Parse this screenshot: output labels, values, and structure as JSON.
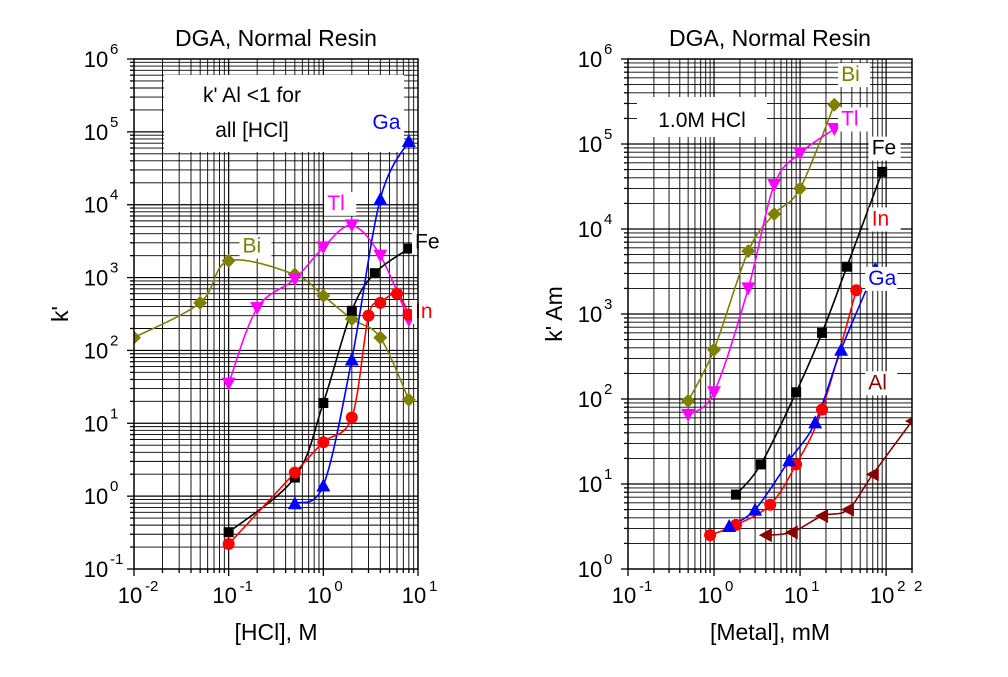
{
  "chart_data": [
    {
      "type": "scatter",
      "title": "DGA, Normal Resin",
      "xlabel": "[HCl], M",
      "ylabel": "k'",
      "xscale": "log",
      "yscale": "log",
      "xlim": [
        0.01,
        10
      ],
      "ylim": [
        0.1,
        1000000
      ],
      "grid": true,
      "annotation": [
        "k' Al <1 for",
        "all [HCl]"
      ],
      "x_ticks": [
        {
          "base": "10",
          "exp": "-2"
        },
        {
          "base": "10",
          "exp": "-1"
        },
        {
          "base": "10",
          "exp": "0"
        },
        {
          "base": "10",
          "exp": "1"
        }
      ],
      "y_ticks": [
        {
          "base": "10",
          "exp": "-1"
        },
        {
          "base": "10",
          "exp": "0"
        },
        {
          "base": "10",
          "exp": "1"
        },
        {
          "base": "10",
          "exp": "2"
        },
        {
          "base": "10",
          "exp": "3"
        },
        {
          "base": "10",
          "exp": "4"
        },
        {
          "base": "10",
          "exp": "5"
        },
        {
          "base": "10",
          "exp": "6"
        }
      ],
      "series": [
        {
          "name": "Bi",
          "color": "#808000",
          "marker": "diamond",
          "x": [
            0.01,
            0.05,
            0.1,
            0.5,
            1,
            2,
            4,
            8
          ],
          "y": [
            150,
            450,
            1700,
            1100,
            560,
            270,
            150,
            21
          ],
          "label": {
            "x": 0.14,
            "y": 2200
          }
        },
        {
          "name": "Tl",
          "color": "#ff00ff",
          "marker": "triangle-down",
          "x": [
            0.1,
            0.2,
            0.5,
            1,
            2,
            4,
            8
          ],
          "y": [
            35,
            380,
            950,
            2600,
            5200,
            2000,
            260
          ],
          "label": {
            "x": 1.1,
            "y": 8500
          }
        },
        {
          "name": "Fe",
          "color": "#000000",
          "marker": "square",
          "x": [
            0.1,
            0.5,
            1,
            2,
            3.5,
            8
          ],
          "y": [
            0.32,
            1.8,
            19,
            350,
            1150,
            2500
          ],
          "label": {
            "x": 9.3,
            "y": 2500
          }
        },
        {
          "name": "Ga",
          "color": "#0000ff",
          "marker": "triangle-up",
          "x": [
            0.5,
            1,
            2,
            4,
            8
          ],
          "y": [
            0.8,
            1.4,
            75,
            12000,
            75000
          ],
          "label": {
            "x": 3.3,
            "y": 110000
          }
        },
        {
          "name": "In",
          "color": "#ff0000",
          "marker": "circle",
          "x": [
            0.1,
            0.5,
            1,
            2,
            3,
            4,
            6,
            8
          ],
          "y": [
            0.22,
            2.1,
            5.5,
            12,
            300,
            450,
            600,
            310
          ],
          "label": {
            "x": 9.3,
            "y": 280
          }
        }
      ]
    },
    {
      "type": "scatter",
      "title": "DGA, Normal Resin",
      "xlabel": "[Metal], mM",
      "ylabel": "k' Am",
      "xscale": "log",
      "yscale": "log",
      "xlim": [
        0.1,
        200
      ],
      "ylim": [
        1,
        1000000
      ],
      "grid": true,
      "annotation": [
        "1.0M HCl"
      ],
      "x_ticks": [
        {
          "base": "10",
          "exp": "-1"
        },
        {
          "base": "10",
          "exp": "0"
        },
        {
          "base": "10",
          "exp": "1"
        },
        {
          "base": "10",
          "exp": "2"
        }
      ],
      "x_tick_extra": [
        {
          "value": 200,
          "label": "2"
        }
      ],
      "y_ticks": [
        {
          "base": "10",
          "exp": "0"
        },
        {
          "base": "10",
          "exp": "1"
        },
        {
          "base": "10",
          "exp": "2"
        },
        {
          "base": "10",
          "exp": "3"
        },
        {
          "base": "10",
          "exp": "4"
        },
        {
          "base": "10",
          "exp": "5"
        },
        {
          "base": "10",
          "exp": "6"
        }
      ],
      "series": [
        {
          "name": "Bi",
          "color": "#808000",
          "marker": "diamond",
          "x": [
            0.5,
            1,
            2.5,
            5,
            10,
            25
          ],
          "y": [
            95,
            380,
            5500,
            15000,
            30000,
            290000
          ],
          "label": {
            "x": 30,
            "y": 550000
          }
        },
        {
          "name": "Tl",
          "color": "#ff00ff",
          "marker": "triangle-down",
          "x": [
            0.5,
            1,
            2.5,
            5,
            10,
            25
          ],
          "y": [
            65,
            120,
            2000,
            33000,
            78000,
            150000
          ],
          "label": {
            "x": 30,
            "y": 165000
          }
        },
        {
          "name": "Fe",
          "color": "#000000",
          "marker": "square",
          "x": [
            1.8,
            3.5,
            9,
            18,
            35,
            90
          ],
          "y": [
            7.5,
            17,
            120,
            600,
            3600,
            47000
          ],
          "label": {
            "x": 68,
            "y": 75000
          }
        },
        {
          "name": "In",
          "color": "#ff0000",
          "marker": "circle",
          "x": [
            0.9,
            1.8,
            4.5,
            9,
            18,
            45
          ],
          "y": [
            2.5,
            3.3,
            5.7,
            17,
            75,
            1900
          ],
          "label": {
            "x": 68,
            "y": 11000
          }
        },
        {
          "name": "Ga",
          "color": "#0000ff",
          "marker": "triangle-up",
          "x": [
            1.5,
            3,
            7.5,
            15,
            30,
            75
          ],
          "y": [
            3.2,
            5,
            19,
            53,
            380,
            3400
          ],
          "label": {
            "x": 62,
            "y": 2200
          }
        },
        {
          "name": "Al",
          "color": "#8b0000",
          "marker": "triangle-left",
          "x": [
            4,
            8,
            18,
            36,
            70,
            200
          ],
          "y": [
            2.5,
            2.7,
            4.2,
            5,
            13,
            55
          ],
          "label": {
            "x": 62,
            "y": 130
          }
        }
      ]
    }
  ]
}
